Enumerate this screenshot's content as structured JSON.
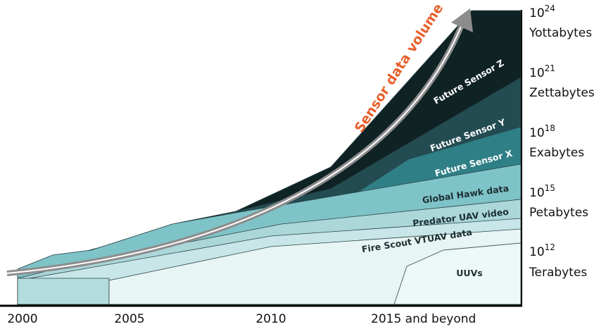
{
  "annotation": "Sensor data volume",
  "x_labels": [
    "2000",
    "2005",
    "2010",
    "2015 and beyond"
  ],
  "y_labels": [
    {
      "base": "10",
      "exponent": "24",
      "name": "Yottabytes"
    },
    {
      "base": "10",
      "exponent": "21",
      "name": "Zettabytes"
    },
    {
      "base": "10",
      "exponent": "18",
      "name": "Exabytes"
    },
    {
      "base": "10",
      "exponent": "15",
      "name": "Petabytes"
    },
    {
      "base": "10",
      "exponent": "12",
      "name": "Terabytes"
    }
  ],
  "layers": [
    "Future Sensor Z",
    "Future Sensor Y",
    "Future Sensor X",
    "Global Hawk data",
    "Predator UAV video",
    "Fire Scout VTUAV data",
    "UUVs"
  ]
}
